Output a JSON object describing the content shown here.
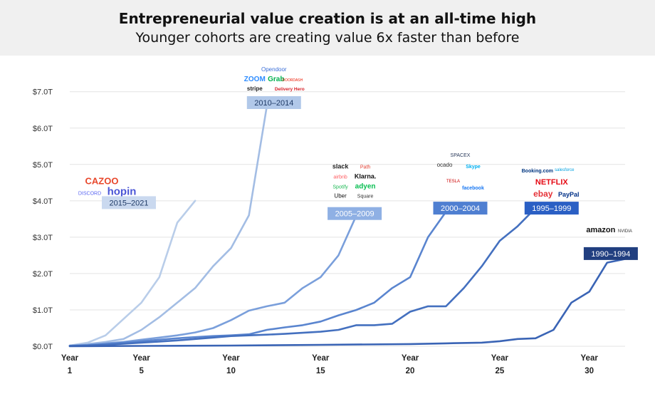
{
  "header": {
    "title": "Entrepreneurial value creation is at an all-time high",
    "subtitle": "Younger cohorts are creating value 6x faster than before"
  },
  "chart_data": {
    "type": "line",
    "title": "Entrepreneurial value creation is at an all-time high",
    "subtitle": "Younger cohorts are creating value 6x faster than before",
    "xlabel": "",
    "ylabel": "",
    "xlim": [
      1,
      32
    ],
    "ylim": [
      0,
      7.7
    ],
    "grid": true,
    "x_ticks": [
      {
        "value": 1,
        "line1": "Year",
        "line2": "1"
      },
      {
        "value": 5,
        "line1": "Year",
        "line2": "5"
      },
      {
        "value": 10,
        "line1": "Year",
        "line2": "10"
      },
      {
        "value": 15,
        "line1": "Year",
        "line2": "15"
      },
      {
        "value": 20,
        "line1": "Year",
        "line2": "20"
      },
      {
        "value": 25,
        "line1": "Year",
        "line2": "25"
      },
      {
        "value": 30,
        "line1": "Year",
        "line2": "30"
      }
    ],
    "y_ticks": [
      {
        "value": 0,
        "label": "$0.0T"
      },
      {
        "value": 1,
        "label": "$1.0T"
      },
      {
        "value": 2,
        "label": "$2.0T"
      },
      {
        "value": 3,
        "label": "$3.0T"
      },
      {
        "value": 4,
        "label": "$4.0T"
      },
      {
        "value": 5,
        "label": "$5.0T"
      },
      {
        "value": 6,
        "label": "$6.0T"
      },
      {
        "value": 7,
        "label": "$7.0T"
      }
    ],
    "series": [
      {
        "name": "2015–2021",
        "color": "#b9cde9",
        "label_fill": "#cad9ef",
        "label_text_color": "#1f3a66",
        "label_at": [
          4.3,
          3.95
        ],
        "logos": [
          "CAZOO",
          "DISCORD",
          "hopin"
        ],
        "x": [
          1,
          2,
          3,
          4,
          5,
          6,
          7,
          8
        ],
        "y": [
          0.02,
          0.1,
          0.3,
          0.75,
          1.2,
          1.9,
          3.4,
          4.0
        ]
      },
      {
        "name": "2010–2014",
        "color": "#a3bde4",
        "label_fill": "#b1c8e9",
        "label_text_color": "#1f3a66",
        "label_at": [
          12.4,
          6.7
        ],
        "logos": [
          "Opendoor",
          "ZOOM",
          "Grab",
          "DOORDASH",
          "stripe",
          "Delivery Hero"
        ],
        "x": [
          1,
          2,
          3,
          4,
          5,
          6,
          7,
          8,
          9,
          10,
          11,
          12
        ],
        "y": [
          0.02,
          0.06,
          0.12,
          0.2,
          0.45,
          0.8,
          1.2,
          1.6,
          2.2,
          2.7,
          3.6,
          6.6
        ]
      },
      {
        "name": "2005–2009",
        "color": "#7a9fdb",
        "label_fill": "#8fb0e4",
        "label_text_color": "#ffffff",
        "label_at": [
          16.9,
          3.65
        ],
        "logos": [
          "slack",
          "Path",
          "airbnb",
          "Klarna.",
          "Spotify",
          "adyen",
          "Uber",
          "Square"
        ],
        "x": [
          1,
          2,
          3,
          4,
          5,
          6,
          7,
          8,
          9,
          10,
          11,
          12,
          13,
          14,
          15,
          16,
          17
        ],
        "y": [
          0.02,
          0.04,
          0.08,
          0.12,
          0.18,
          0.24,
          0.3,
          0.38,
          0.5,
          0.72,
          0.98,
          1.1,
          1.2,
          1.6,
          1.9,
          2.5,
          3.6
        ]
      },
      {
        "name": "2000–2004",
        "color": "#5a85cf",
        "label_fill": "#4f7fd1",
        "label_text_color": "#ffffff",
        "label_at": [
          22.8,
          3.8
        ],
        "logos": [
          "SPACEX",
          "ocado",
          "Skype",
          "TESLA",
          "facebook"
        ],
        "x": [
          1,
          2,
          3,
          4,
          5,
          6,
          7,
          8,
          9,
          10,
          11,
          12,
          13,
          14,
          15,
          16,
          17,
          18,
          19,
          20,
          21,
          22,
          23
        ],
        "y": [
          0.01,
          0.03,
          0.06,
          0.1,
          0.14,
          0.18,
          0.22,
          0.25,
          0.28,
          0.3,
          0.33,
          0.45,
          0.52,
          0.58,
          0.68,
          0.85,
          1.0,
          1.2,
          1.6,
          1.9,
          3.0,
          3.7,
          3.8
        ]
      },
      {
        "name": "1995–1999",
        "color": "#4470bf",
        "label_fill": "#2a5fc4",
        "label_text_color": "#ffffff",
        "label_at": [
          27.9,
          3.8
        ],
        "logos": [
          "Booking.com",
          "salesforce",
          "NETFLIX",
          "ebay",
          "PayPal"
        ],
        "x": [
          1,
          2,
          3,
          4,
          5,
          6,
          7,
          8,
          9,
          10,
          11,
          12,
          13,
          14,
          15,
          16,
          17,
          18,
          19,
          20,
          21,
          22,
          23,
          24,
          25,
          26,
          27
        ],
        "y": [
          0.01,
          0.02,
          0.04,
          0.07,
          0.1,
          0.13,
          0.16,
          0.2,
          0.24,
          0.28,
          0.3,
          0.32,
          0.34,
          0.37,
          0.4,
          0.45,
          0.58,
          0.58,
          0.62,
          0.95,
          1.1,
          1.1,
          1.6,
          2.2,
          2.9,
          3.3,
          3.8
        ]
      },
      {
        "name": "1990–1994",
        "color": "#3a64b5",
        "label_fill": "#213f80",
        "label_text_color": "#ffffff",
        "label_at": [
          31.2,
          2.55
        ],
        "logos": [
          "amazon",
          "NVIDIA"
        ],
        "x": [
          1,
          5,
          10,
          15,
          20,
          22,
          24,
          25,
          26,
          27,
          28,
          29,
          30,
          31,
          32
        ],
        "y": [
          0.0,
          0.01,
          0.02,
          0.04,
          0.06,
          0.08,
          0.1,
          0.14,
          0.2,
          0.22,
          0.45,
          1.2,
          1.5,
          2.3,
          2.4
        ]
      }
    ]
  }
}
